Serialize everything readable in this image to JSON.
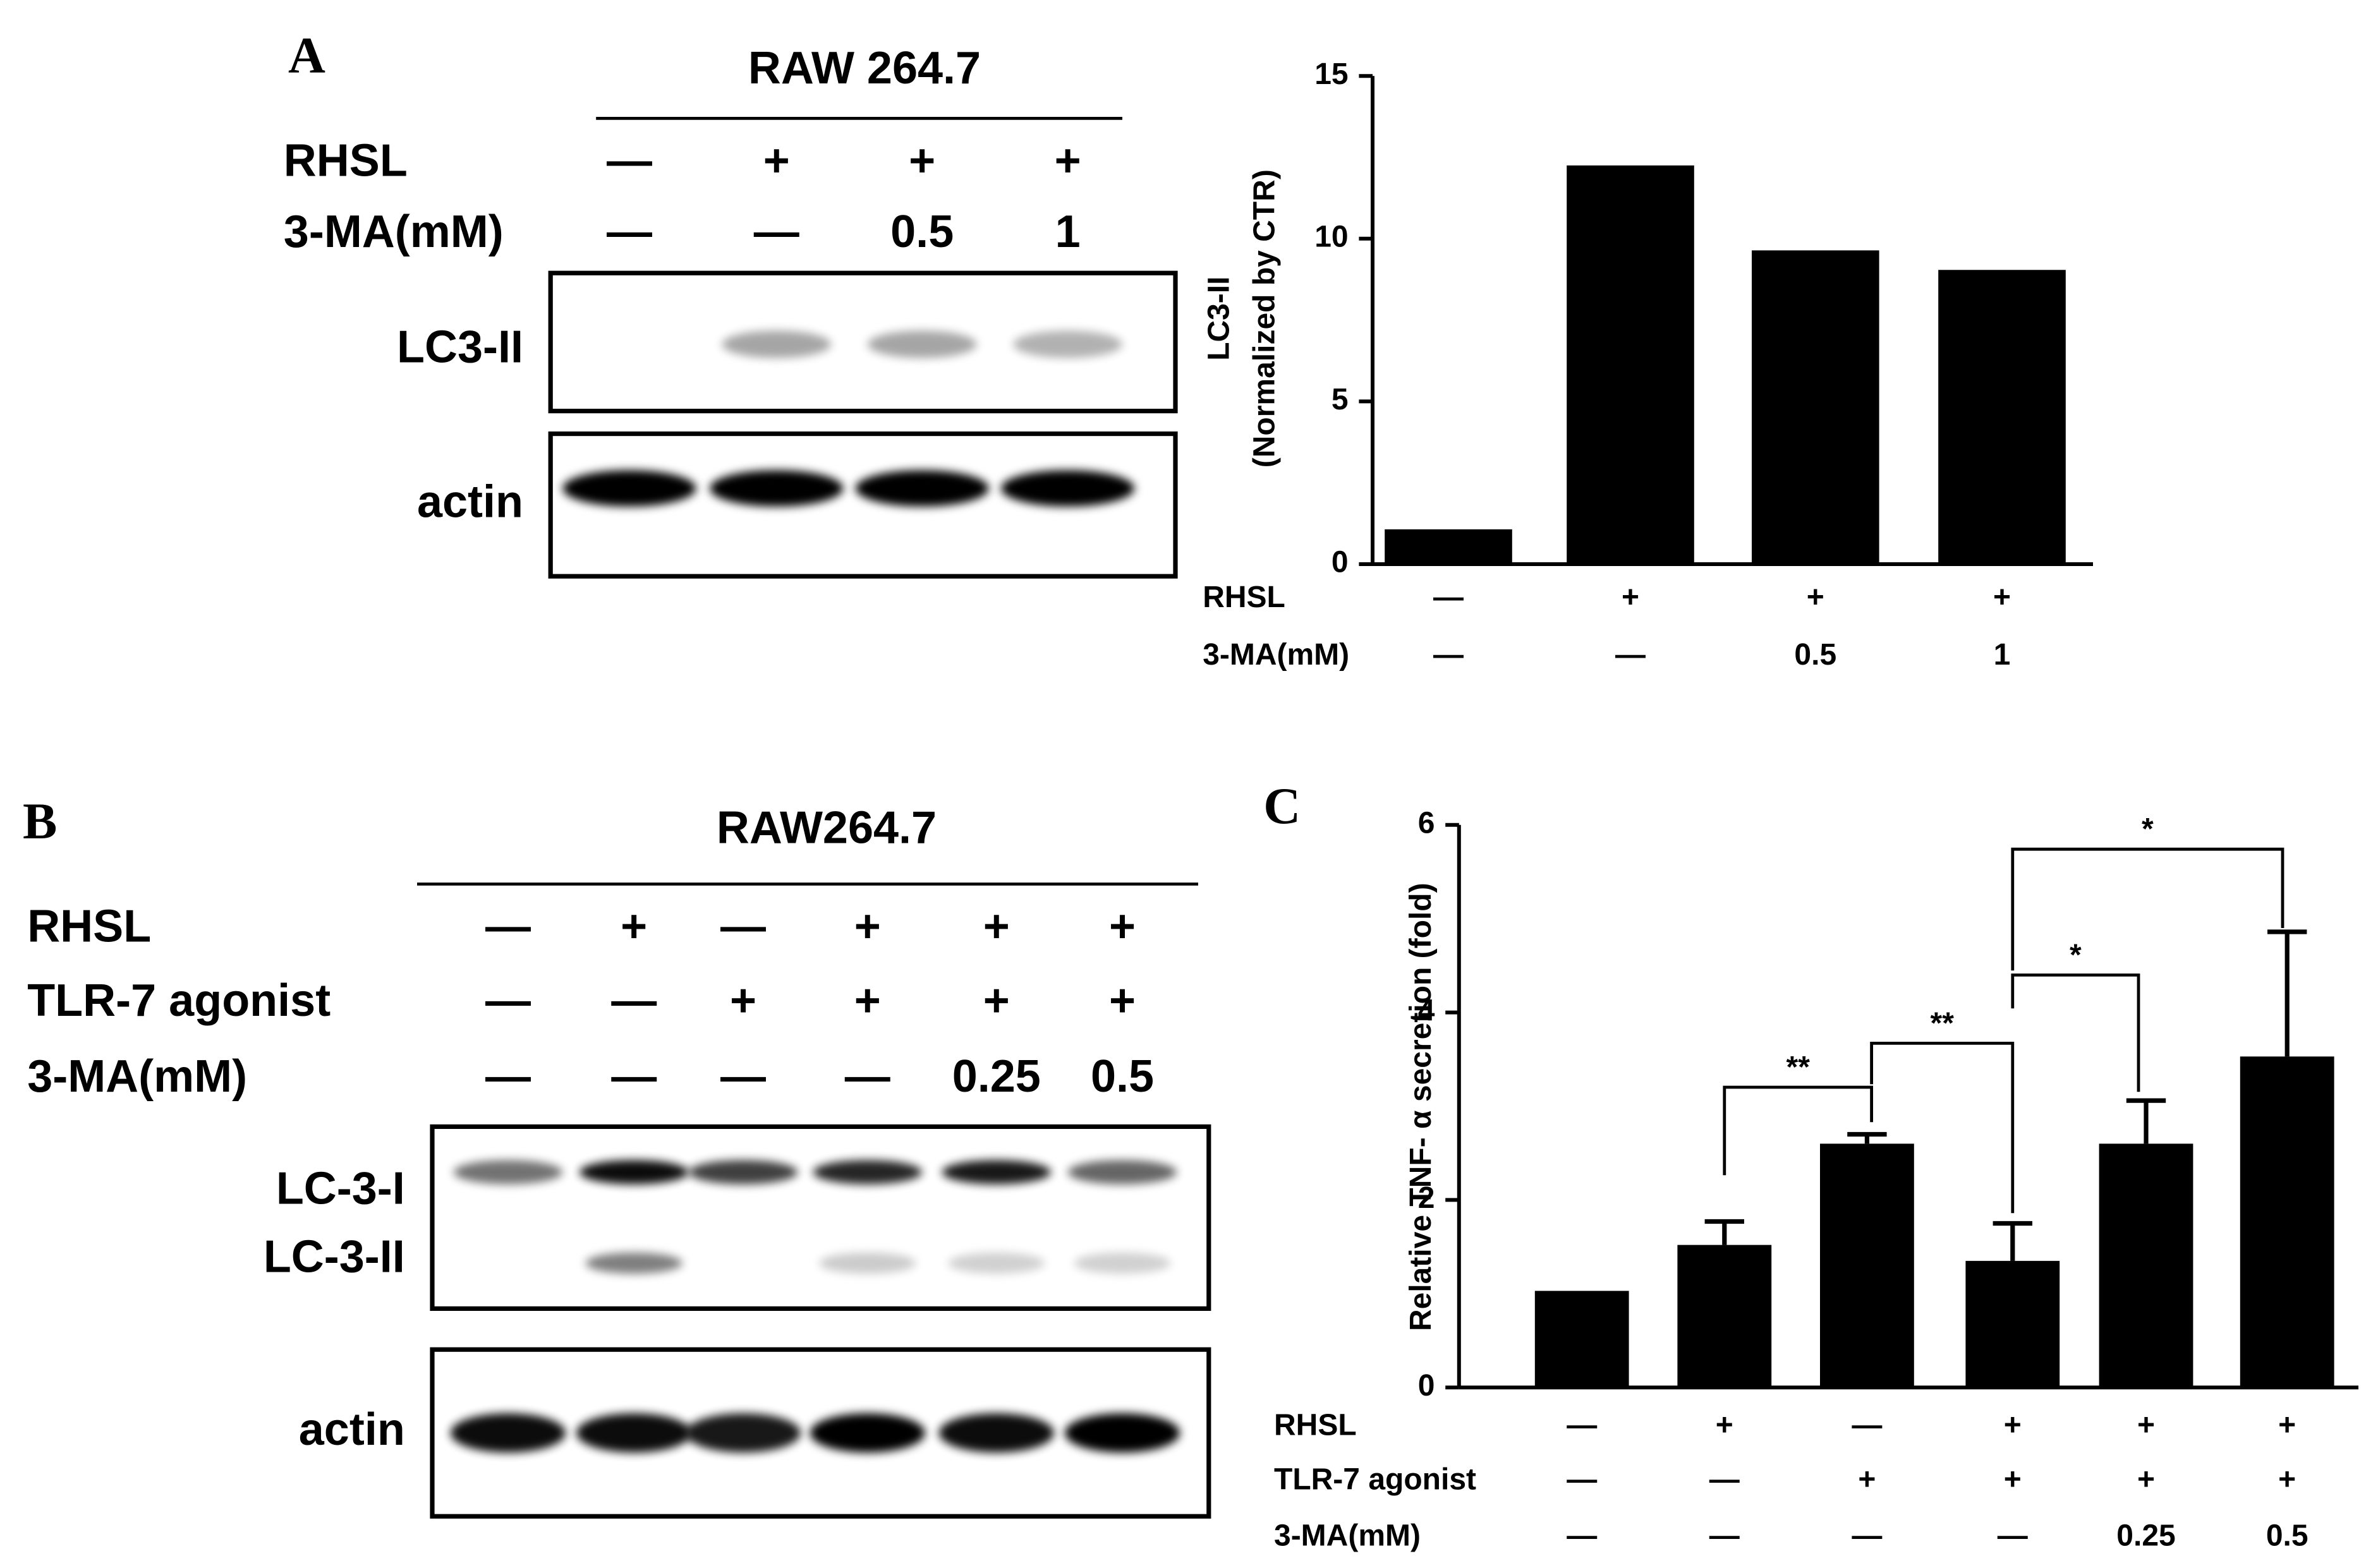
{
  "chart_data": [
    {
      "type": "bar",
      "panel": "A",
      "ylabel": "LC3-II",
      "ylabel_sub": "(Normalized by CTR)",
      "color": "#000000",
      "condition_rows": [
        {
          "label": "RHSL",
          "values": [
            "—",
            "+",
            "+",
            "+"
          ]
        },
        {
          "label": "3-MA(mM)",
          "values": [
            "—",
            "—",
            "0.5",
            "1"
          ]
        }
      ],
      "values": [
        1.07,
        12.25,
        9.64,
        9.04
      ],
      "ylim": [
        0,
        15
      ],
      "yticks": [
        0,
        5,
        10,
        15
      ]
    },
    {
      "type": "bar",
      "panel": "C",
      "ylabel": "Relative TNF- α secretion (fold)",
      "color": "#000000",
      "condition_rows": [
        {
          "label": "RHSL",
          "values": [
            "—",
            "+",
            "—",
            "+",
            "+",
            "+"
          ]
        },
        {
          "label": "TLR-7 agonist",
          "values": [
            "—",
            "—",
            "+",
            "+",
            "+",
            "+"
          ]
        },
        {
          "label": "3-MA(mM)",
          "values": [
            "—",
            "—",
            "—",
            "—",
            "0.25",
            "0.5"
          ]
        }
      ],
      "values": [
        1.03,
        1.52,
        2.6,
        1.35,
        2.6,
        3.53
      ],
      "errors": [
        0,
        0.25,
        0.1,
        0.4,
        0.46,
        1.33
      ],
      "annotations": [
        "**",
        "**",
        "*",
        "*"
      ],
      "ylim": [
        0,
        6
      ],
      "yticks": [
        0,
        2,
        4,
        6
      ]
    }
  ],
  "blots": [
    {
      "panel": "A",
      "title": "RAW 264.7",
      "condition_rows": [
        {
          "label": "RHSL",
          "values": [
            "—",
            "+",
            "+",
            "+"
          ]
        },
        {
          "label": "3-MA(mM)",
          "values": [
            "—",
            "—",
            "0.5",
            "1"
          ]
        }
      ],
      "bands": [
        "LC3-II",
        "actin"
      ]
    },
    {
      "panel": "B",
      "title": "RAW264.7",
      "condition_rows": [
        {
          "label": "RHSL",
          "values": [
            "—",
            "+",
            "—",
            "+",
            "+",
            "+"
          ]
        },
        {
          "label": "TLR-7 agonist",
          "values": [
            "—",
            "—",
            "+",
            "+",
            "+",
            "+"
          ]
        },
        {
          "label": "3-MA(mM)",
          "values": [
            "—",
            "—",
            "—",
            "—",
            "0.25",
            "0.5"
          ]
        }
      ],
      "bands": [
        "LC-3-I",
        "LC-3-II",
        "actin"
      ]
    }
  ]
}
